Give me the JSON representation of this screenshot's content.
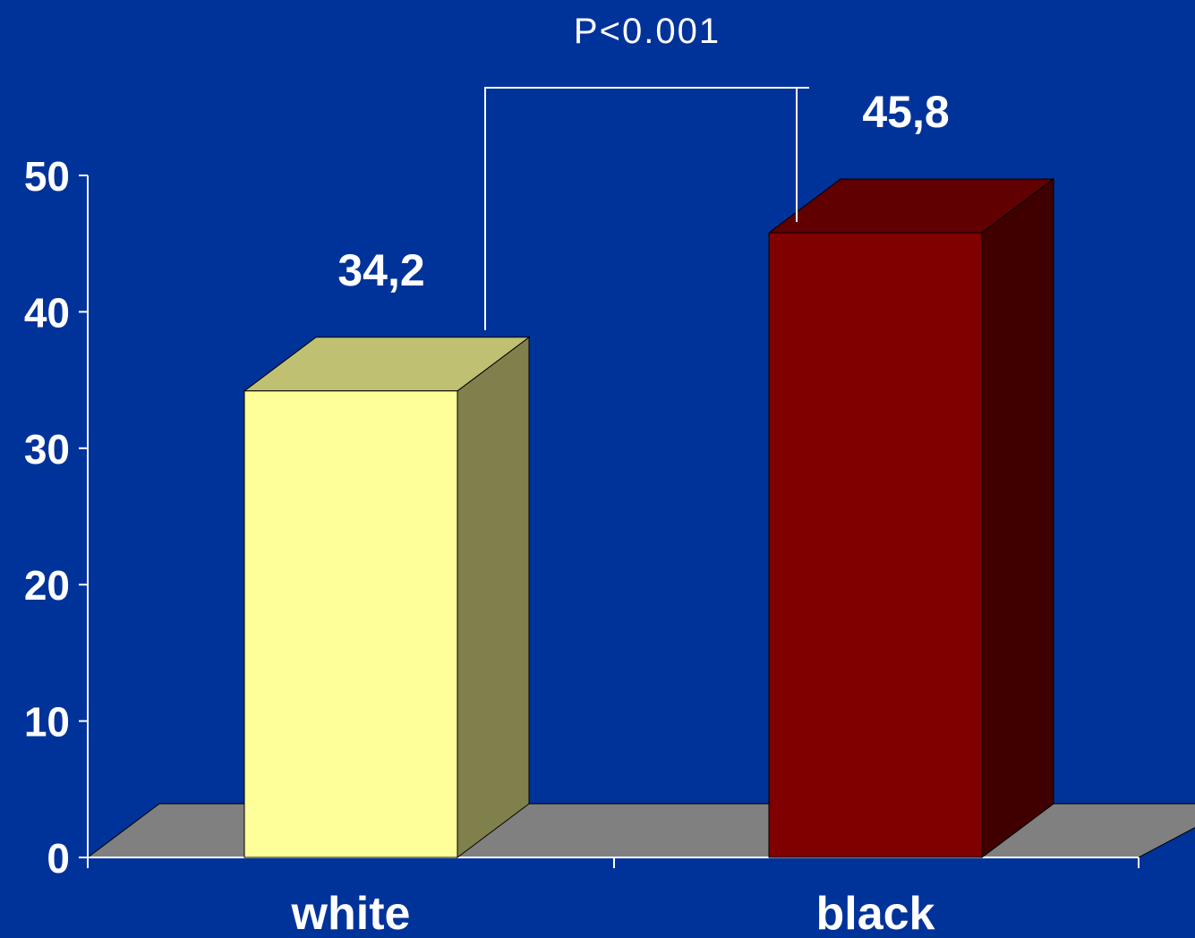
{
  "colors": {
    "background": "#003399",
    "floor": "#808080",
    "axis": "#ffffff",
    "bracket": "#ffffff"
  },
  "annotation": {
    "p_value": "P<0.001"
  },
  "chart_data": {
    "type": "bar",
    "style": "3d",
    "categories": [
      "white",
      "black"
    ],
    "series": [
      {
        "values": [
          34.2,
          45.8
        ],
        "value_labels": [
          "34,2",
          "45,8"
        ],
        "colors": [
          {
            "front": "#ffff99",
            "top": "#c0c072",
            "side": "#80804c"
          },
          {
            "front": "#800000",
            "top": "#600000",
            "side": "#400000"
          }
        ]
      }
    ],
    "title": "",
    "xlabel": "",
    "ylabel": "",
    "ylim": [
      0,
      50
    ],
    "yticks": [
      0,
      10,
      20,
      30,
      40,
      50
    ],
    "ytick_labels": [
      "0",
      "10",
      "20",
      "30",
      "40",
      "50"
    ],
    "grid": false,
    "legend": "none",
    "annotations": [
      {
        "type": "significance-bracket",
        "between": [
          "white",
          "black"
        ],
        "text": "P<0.001"
      }
    ]
  }
}
